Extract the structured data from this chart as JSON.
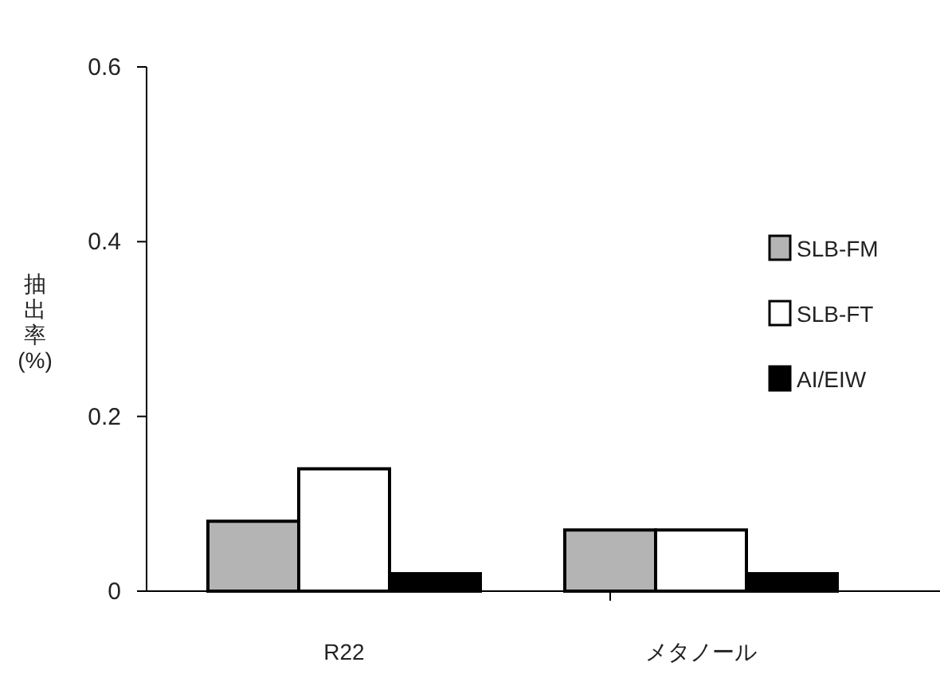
{
  "chart_data": {
    "type": "bar",
    "ylabel": "抽出率(%)",
    "categories": [
      "R22",
      "メタノール"
    ],
    "series": [
      {
        "name": "SLB-FM",
        "color": "#b4b4b4",
        "values": [
          0.08,
          0.07
        ]
      },
      {
        "name": "SLB-FT",
        "color": "#ffffff",
        "values": [
          0.14,
          0.07
        ]
      },
      {
        "name": "AI/EIW",
        "color": "#000000",
        "values": [
          0.02,
          0.02
        ]
      }
    ],
    "ylim": [
      0,
      0.6
    ],
    "yticks": [
      0,
      0.2,
      0.4,
      0.6
    ],
    "grid": false,
    "legend": "right"
  }
}
